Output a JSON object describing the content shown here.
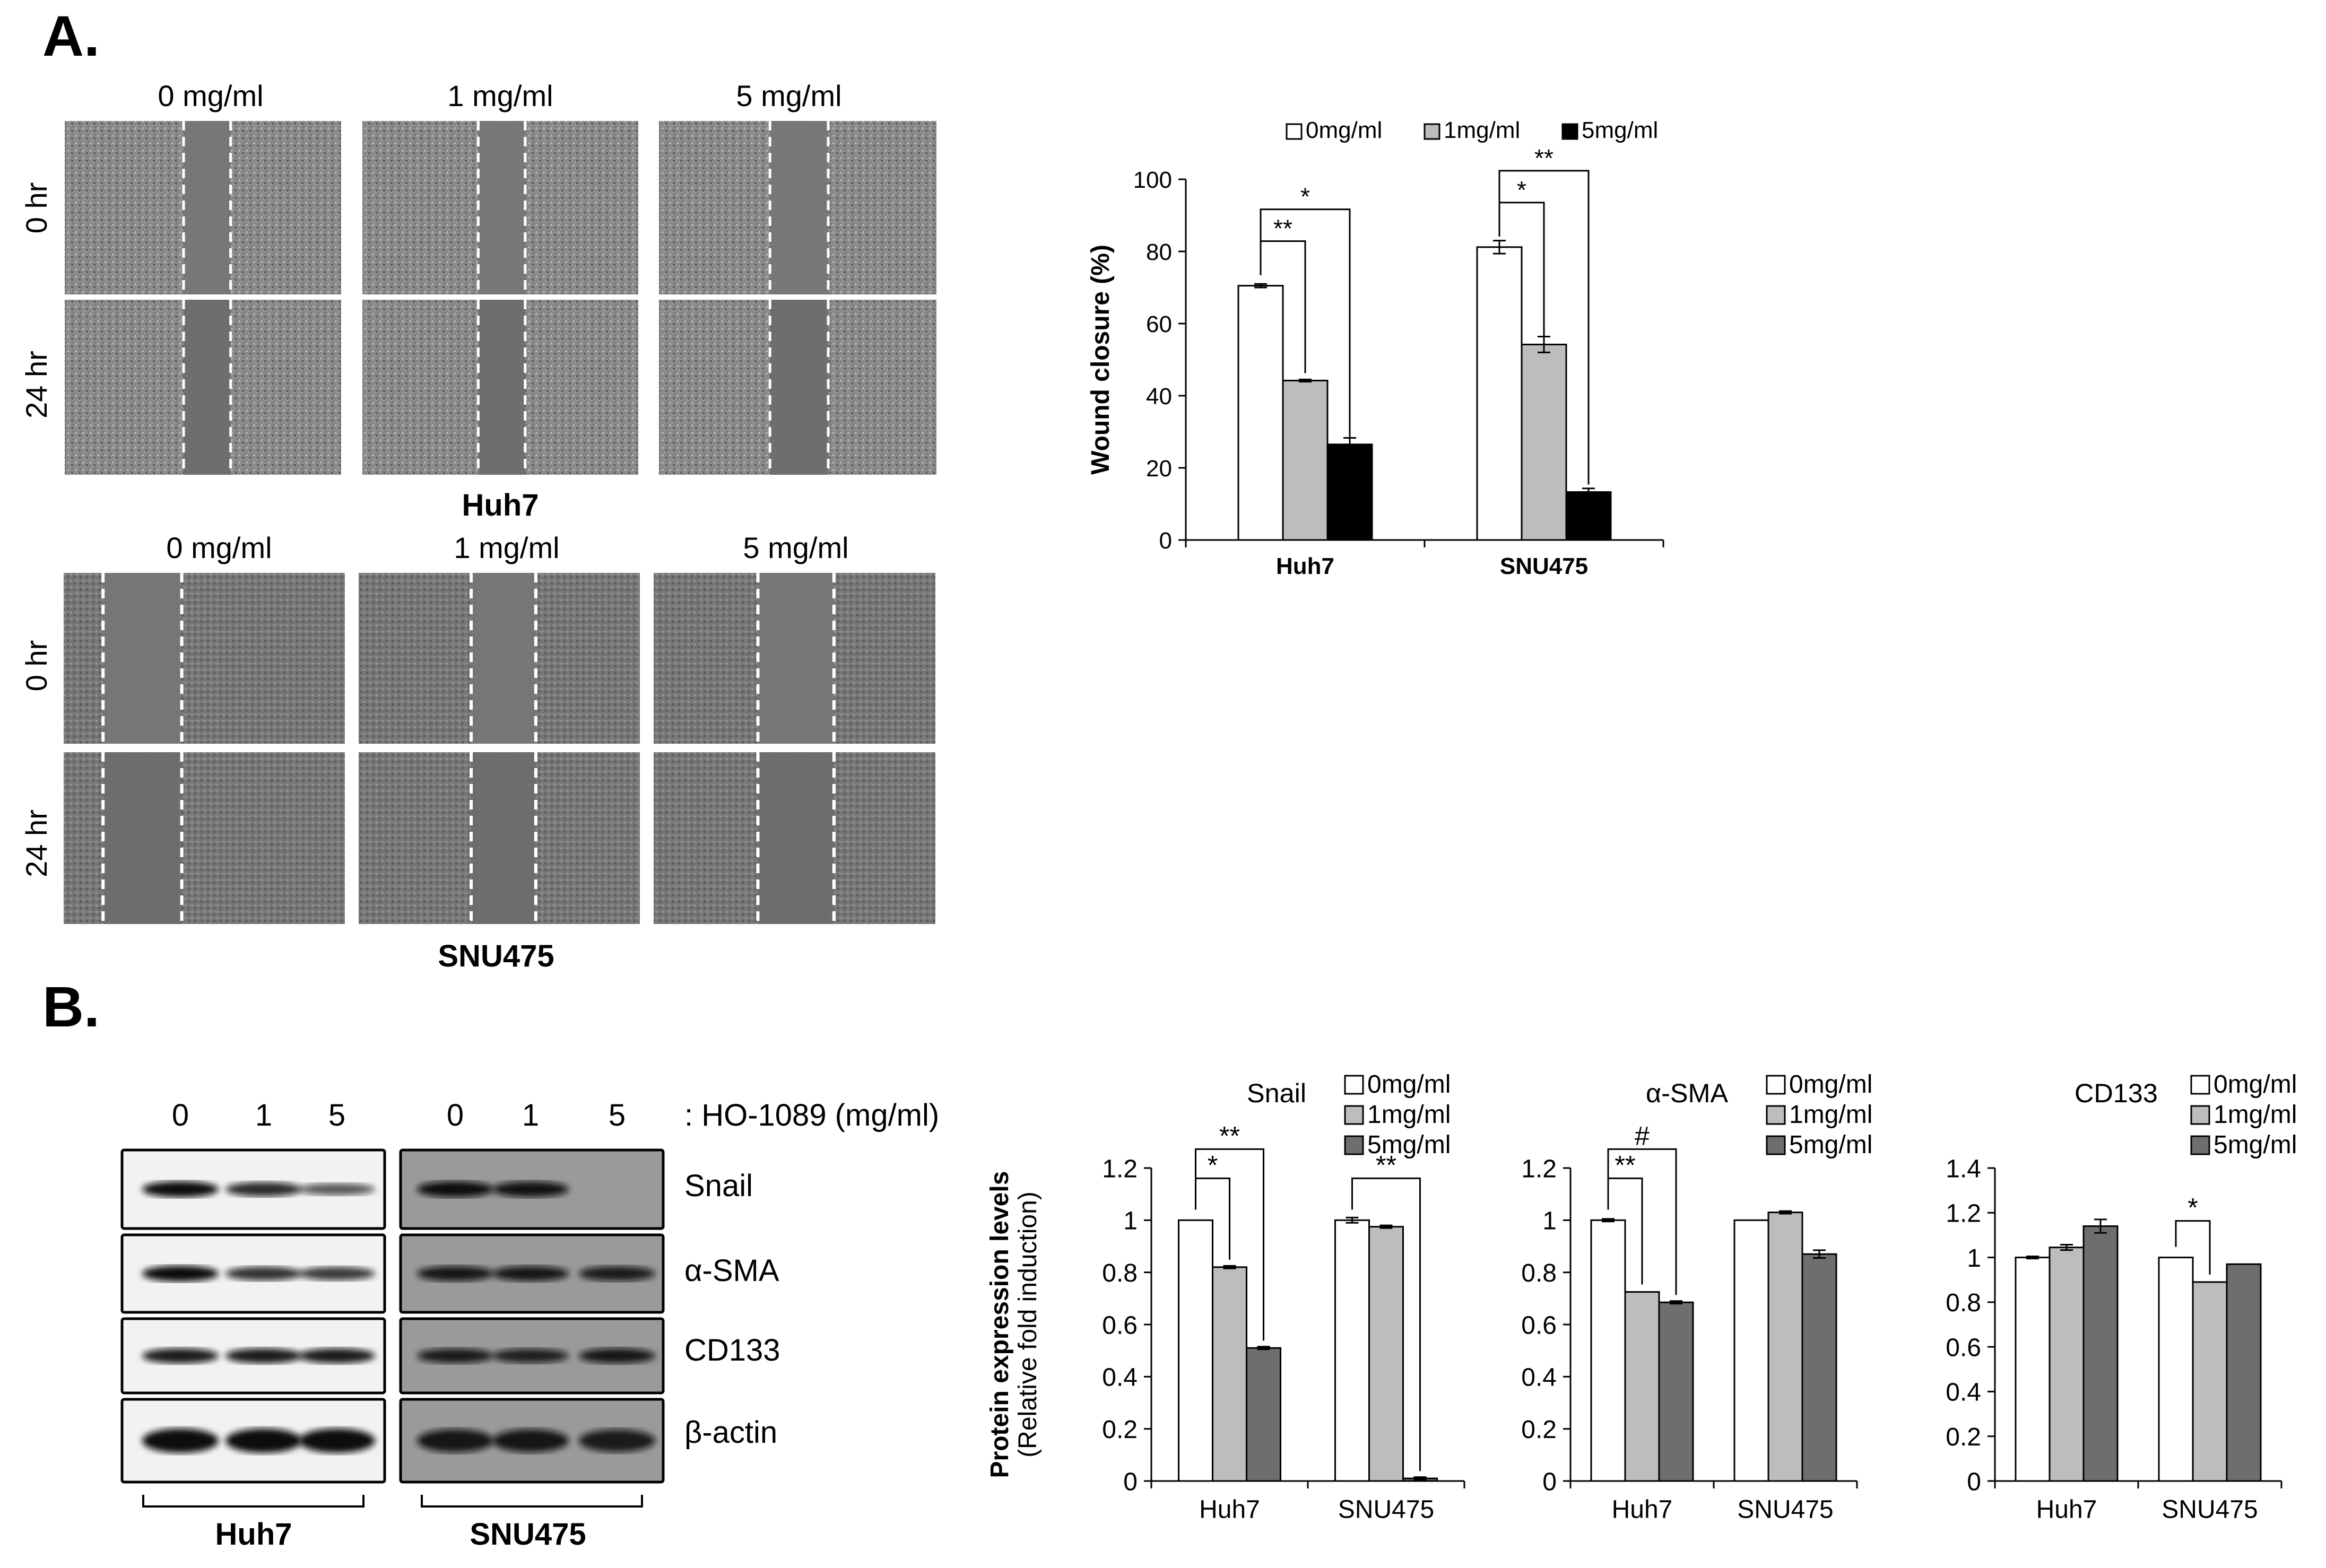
{
  "panel_a": {
    "letter": "A.",
    "conc_labels": [
      "0 mg/ml",
      "1 mg/ml",
      "5 mg/ml"
    ],
    "time_labels": [
      "0 hr",
      "24 hr"
    ],
    "huh7_label": "Huh7",
    "snu475_label": "SNU475"
  },
  "panel_b": {
    "letter": "B.",
    "blot_lanes": [
      "0",
      "1",
      "5"
    ],
    "treatment_label": ": HO-1089 (mg/ml)",
    "proteins": [
      "Snail",
      "α-SMA",
      "CD133",
      "β-actin"
    ],
    "cell_lines": [
      "Huh7",
      "SNU475"
    ],
    "band_intensity": {
      "Huh7": {
        "Snail": [
          1.0,
          0.8,
          0.5
        ],
        "α-SMA": [
          1.0,
          0.75,
          0.7
        ],
        "CD133": [
          0.9,
          0.9,
          0.9
        ],
        "β-actin": [
          1.0,
          1.0,
          1.0
        ]
      },
      "SNU475": {
        "Snail": [
          1.0,
          0.95,
          0.0
        ],
        "α-SMA": [
          0.9,
          0.9,
          0.85
        ],
        "CD133": [
          0.85,
          0.8,
          0.9
        ],
        "β-actin": [
          0.9,
          0.9,
          0.85
        ]
      }
    }
  },
  "chart_data": [
    {
      "type": "bar",
      "title": "",
      "ylabel": "Wound closure (%)",
      "xlabel": "",
      "categories": [
        "Huh7",
        "SNU475"
      ],
      "series": [
        {
          "name": "0mg/ml",
          "color": "#ffffff",
          "values": [
            70.5,
            81.2
          ],
          "errors": [
            0.5,
            1.8
          ]
        },
        {
          "name": "1mg/ml",
          "color": "#bdbdbd",
          "values": [
            44.2,
            54.2
          ],
          "errors": [
            0.3,
            2.2
          ]
        },
        {
          "name": "5mg/ml",
          "color": "#000000",
          "values": [
            26.5,
            13.3
          ],
          "errors": [
            1.8,
            1.0
          ]
        }
      ],
      "ylim": [
        0,
        100
      ],
      "yticks": [
        "0",
        "20",
        "40",
        "60",
        "80",
        "100"
      ],
      "legend_position": "top",
      "significance": [
        {
          "category": 0,
          "from": 0,
          "to": 1,
          "label": "**"
        },
        {
          "category": 0,
          "from": 0,
          "to": 2,
          "label": "*"
        },
        {
          "category": 1,
          "from": 0,
          "to": 1,
          "label": "*"
        },
        {
          "category": 1,
          "from": 0,
          "to": 2,
          "label": "**"
        }
      ]
    },
    {
      "type": "bar",
      "title": "Snail",
      "ylabel": "Protein expression levels",
      "ylabel2": "(Relative fold induction)",
      "categories": [
        "Huh7",
        "SNU475"
      ],
      "series": [
        {
          "name": "0mg/ml",
          "color": "#ffffff",
          "values": [
            1.0,
            1.0
          ],
          "errors": [
            0.0,
            0.01
          ]
        },
        {
          "name": "1mg/ml",
          "color": "#bdbdbd",
          "values": [
            0.82,
            0.975
          ],
          "errors": [
            0.005,
            0.005
          ]
        },
        {
          "name": "5mg/ml",
          "color": "#6e6e6e",
          "values": [
            0.51,
            0.01
          ],
          "errors": [
            0.005,
            0.005
          ]
        }
      ],
      "ylim": [
        0,
        1.2
      ],
      "yticks": [
        "0",
        "0.2",
        "0.4",
        "0.6",
        "0.8",
        "1",
        "1.2"
      ],
      "legend_position": "top-right",
      "significance": [
        {
          "category": 0,
          "from": 0,
          "to": 1,
          "label": "*"
        },
        {
          "category": 0,
          "from": 0,
          "to": 2,
          "label": "**"
        },
        {
          "category": 1,
          "from": 0,
          "to": 2,
          "label": "**"
        }
      ]
    },
    {
      "type": "bar",
      "title": "α-SMA",
      "ylabel": "",
      "categories": [
        "Huh7",
        "SNU475"
      ],
      "series": [
        {
          "name": "0mg/ml",
          "color": "#ffffff",
          "values": [
            1.0,
            1.0
          ],
          "errors": [
            0.005,
            0.0
          ]
        },
        {
          "name": "1mg/ml",
          "color": "#bdbdbd",
          "values": [
            0.725,
            1.03
          ],
          "errors": [
            0.0,
            0.005
          ]
        },
        {
          "name": "5mg/ml",
          "color": "#6e6e6e",
          "values": [
            0.685,
            0.87
          ],
          "errors": [
            0.005,
            0.015
          ]
        }
      ],
      "ylim": [
        0,
        1.2
      ],
      "yticks": [
        "0",
        "0.2",
        "0.4",
        "0.6",
        "0.8",
        "1",
        "1.2"
      ],
      "legend_position": "top-right",
      "significance": [
        {
          "category": 0,
          "from": 0,
          "to": 1,
          "label": "**"
        },
        {
          "category": 0,
          "from": 0,
          "to": 2,
          "label": "#"
        }
      ]
    },
    {
      "type": "bar",
      "title": "CD133",
      "ylabel": "",
      "categories": [
        "Huh7",
        "SNU475"
      ],
      "series": [
        {
          "name": "0mg/ml",
          "color": "#ffffff",
          "values": [
            1.0,
            1.0
          ],
          "errors": [
            0.005,
            0.0
          ]
        },
        {
          "name": "1mg/ml",
          "color": "#bdbdbd",
          "values": [
            1.045,
            0.89
          ],
          "errors": [
            0.012,
            0.0
          ]
        },
        {
          "name": "5mg/ml",
          "color": "#6e6e6e",
          "values": [
            1.14,
            0.97
          ],
          "errors": [
            0.03,
            0.0
          ]
        }
      ],
      "ylim": [
        0,
        1.4
      ],
      "yticks": [
        "0",
        "0.2",
        "0.4",
        "0.6",
        "0.8",
        "1",
        "1.2",
        "1.4"
      ],
      "legend_position": "top-right",
      "significance": [
        {
          "category": 1,
          "from": 0,
          "to": 1,
          "label": "*"
        }
      ]
    }
  ]
}
